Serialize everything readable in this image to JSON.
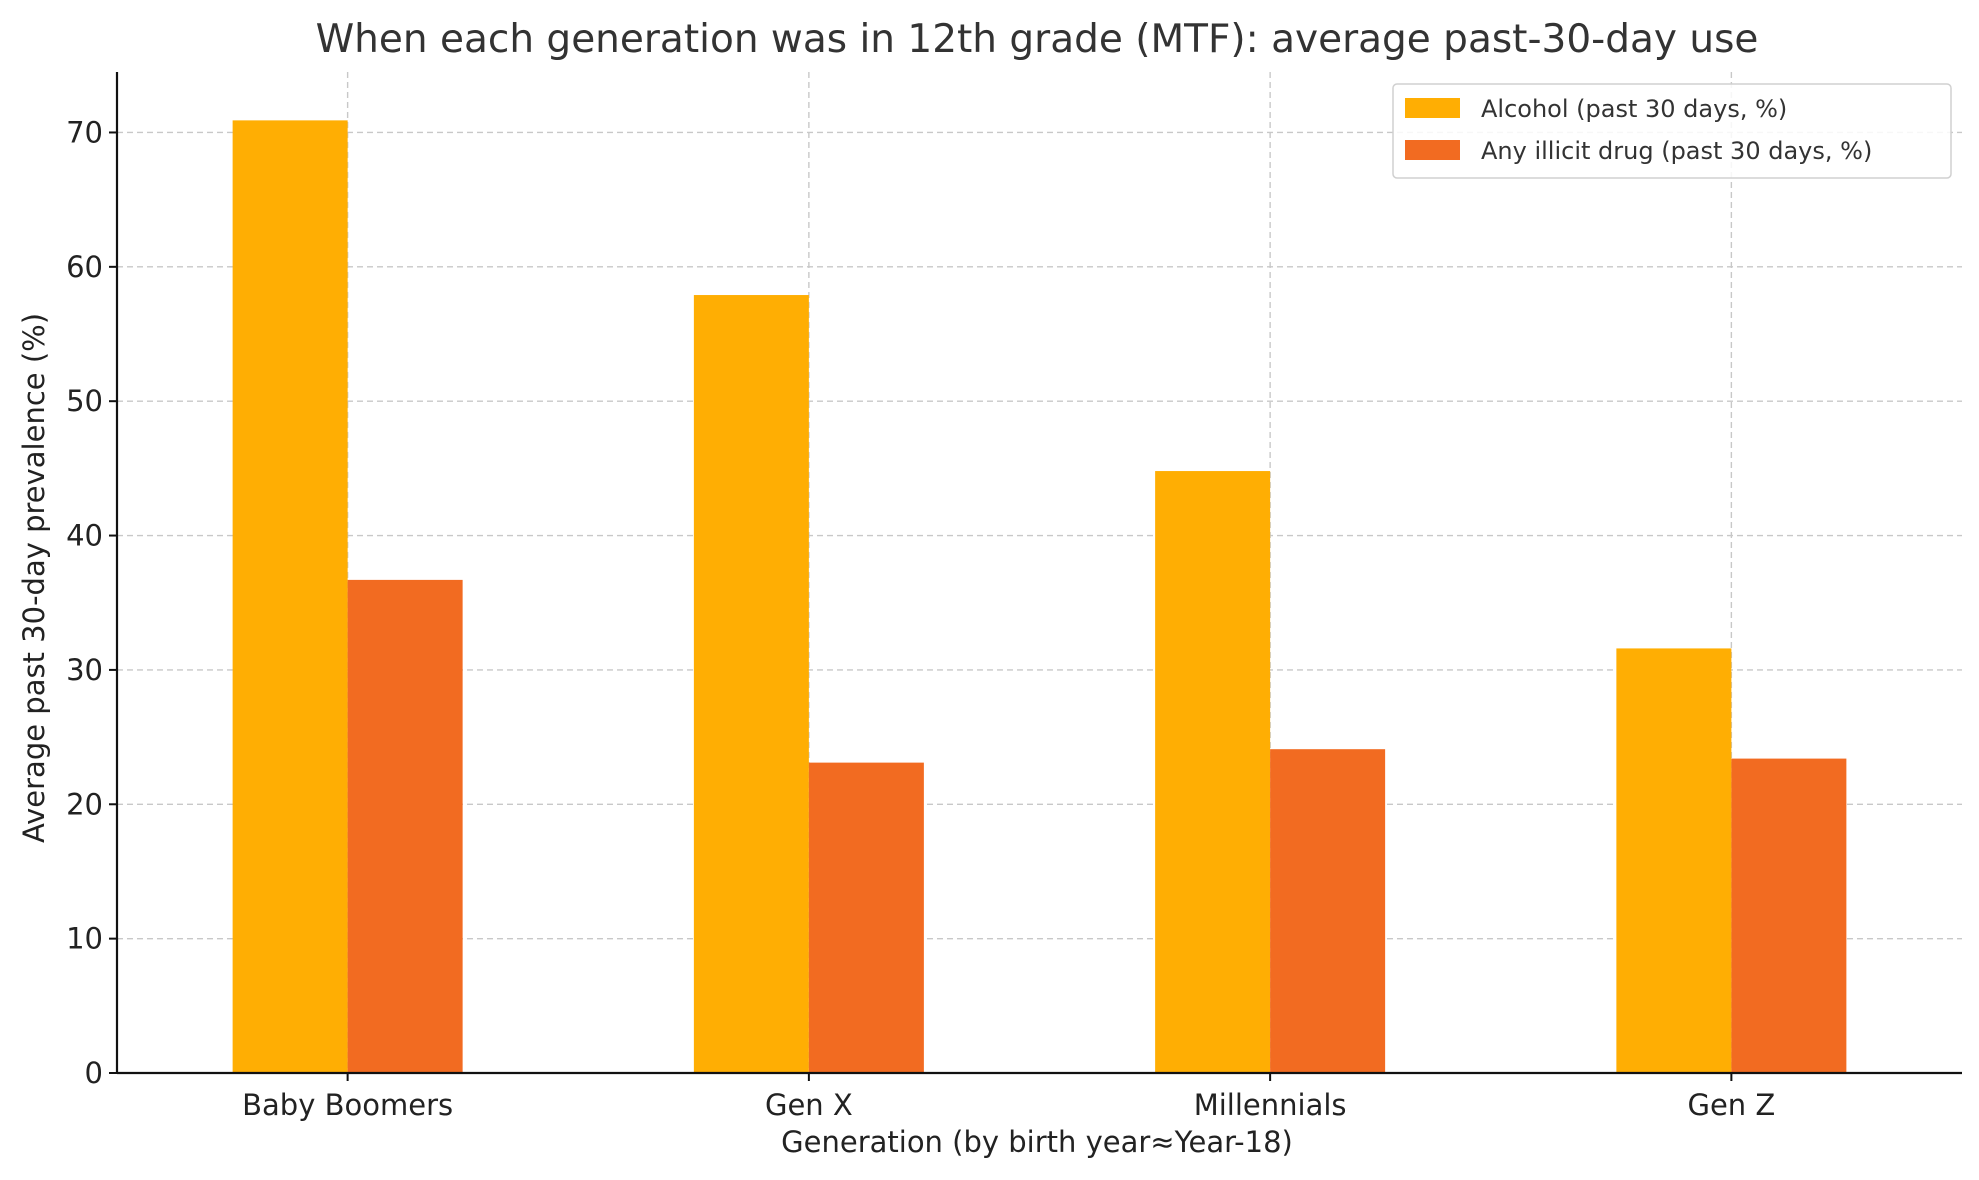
{
  "chart_data": {
    "type": "bar",
    "title": "When each generation was in 12th grade (MTF): average past-30-day use",
    "xlabel": "Generation (by birth year≈Year-18)",
    "ylabel": "Average past 30-day prevalence (%)",
    "categories": [
      "Baby Boomers",
      "Gen X",
      "Millennials",
      "Gen Z"
    ],
    "series": [
      {
        "name": "Alcohol (past 30 days, %)",
        "color": "#FFAE03",
        "values": [
          70.9,
          57.9,
          44.8,
          31.6
        ]
      },
      {
        "name": "Any illicit drug (past 30 days, %)",
        "color": "#F26B21",
        "values": [
          36.7,
          23.1,
          24.1,
          23.4
        ]
      }
    ],
    "ylim": [
      0,
      74.5
    ],
    "yticks": [
      0,
      10,
      20,
      30,
      40,
      50,
      60,
      70
    ],
    "grid": true,
    "legend_position": "top-right"
  }
}
